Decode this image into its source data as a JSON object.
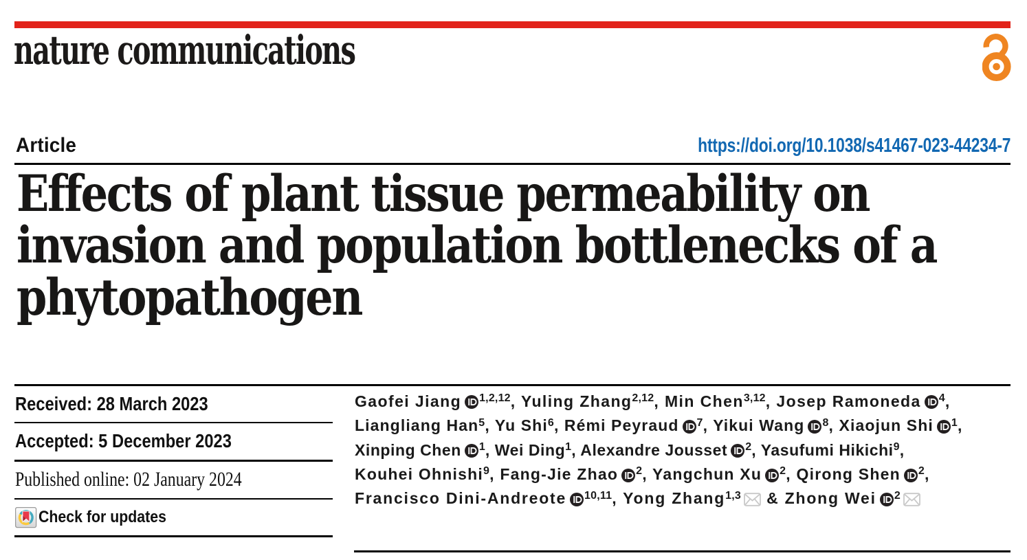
{
  "masthead": {
    "journal": "nature communications",
    "open_access_icon": "open-access-padlock-icon"
  },
  "article_bar": {
    "kind": "Article",
    "doi": "https://doi.org/10.1038/s41467-023-44234-7"
  },
  "title_lines": [
    "Effects of plant tissue permeability on",
    "invasion and population bottlenecks of a",
    "phytopathogen"
  ],
  "dates": [
    {
      "label": "Received: 28 March 2023",
      "style": "sans"
    },
    {
      "label": "Accepted: 5 December 2023",
      "style": "sans"
    },
    {
      "label": "Published online: 02 January 2024",
      "style": "serif"
    }
  ],
  "check_for_updates": {
    "label": "Check for updates",
    "icon": "crossmark-icon"
  },
  "authors": {
    "lines": [
      [
        {
          "t": "Gaofei Jiang"
        },
        {
          "icon": "orcid"
        },
        {
          "sup": "1,2,12"
        },
        {
          "t": ", Yuling Zhang"
        },
        {
          "sup": "2,12"
        },
        {
          "t": ", Min Chen"
        },
        {
          "sup": "3,12"
        },
        {
          "t": ", Josep Ramoneda"
        },
        {
          "icon": "orcid"
        },
        {
          "sup": "4"
        },
        {
          "t": ","
        }
      ],
      [
        {
          "t": "Liangliang Han"
        },
        {
          "sup": "5"
        },
        {
          "t": ", Yu Shi"
        },
        {
          "sup": "6"
        },
        {
          "t": ", Rémi Peyraud"
        },
        {
          "icon": "orcid"
        },
        {
          "sup": "7"
        },
        {
          "t": ", Yikui Wang"
        },
        {
          "icon": "orcid"
        },
        {
          "sup": "8"
        },
        {
          "t": ", Xiaojun Shi"
        },
        {
          "icon": "orcid"
        },
        {
          "sup": "1"
        },
        {
          "t": ","
        }
      ],
      [
        {
          "t": "Xinping Chen"
        },
        {
          "icon": "orcid"
        },
        {
          "sup": "1"
        },
        {
          "t": ", Wei Ding"
        },
        {
          "sup": "1"
        },
        {
          "t": ", Alexandre Jousset"
        },
        {
          "icon": "orcid"
        },
        {
          "sup": "2"
        },
        {
          "t": ", Yasufumi Hikichi"
        },
        {
          "sup": "9"
        },
        {
          "t": ","
        }
      ],
      [
        {
          "t": "Kouhei Ohnishi"
        },
        {
          "sup": "9"
        },
        {
          "t": ", Fang-Jie Zhao"
        },
        {
          "icon": "orcid"
        },
        {
          "sup": "2"
        },
        {
          "t": ", Yangchun Xu"
        },
        {
          "icon": "orcid"
        },
        {
          "sup": "2"
        },
        {
          "t": ", Qirong Shen"
        },
        {
          "icon": "orcid"
        },
        {
          "sup": "2"
        },
        {
          "t": ","
        }
      ],
      [
        {
          "t": "Francisco Dini-Andreote"
        },
        {
          "icon": "orcid"
        },
        {
          "sup": "10,11"
        },
        {
          "t": ", Yong Zhang"
        },
        {
          "sup": "1,3"
        },
        {
          "icon": "envelope"
        },
        {
          "t": " & Zhong Wei"
        },
        {
          "icon": "orcid"
        },
        {
          "sup": "2"
        },
        {
          "icon": "envelope"
        }
      ]
    ]
  },
  "colors": {
    "red": "#e2231a",
    "blue": "#1268b2",
    "orange": "#ef8521",
    "ink": "#111111",
    "crossmark_teal": "#45aabf",
    "crossmark_yellow": "#fbc93d",
    "crossmark_red": "#e8394a",
    "envelope_gray": "#c9c9c9"
  }
}
